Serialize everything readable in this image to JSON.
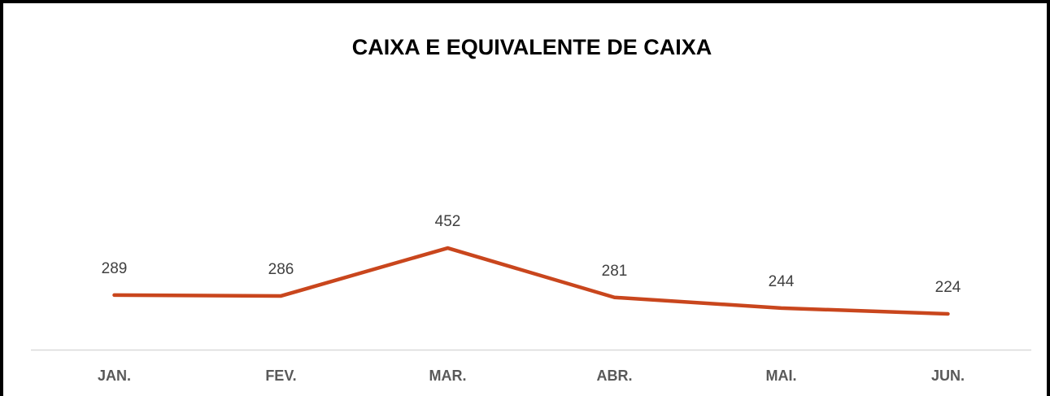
{
  "chart_data": {
    "type": "line",
    "title": "CAIXA E EQUIVALENTE DE CAIXA",
    "categories": [
      "JAN.",
      "FEV.",
      "MAR.",
      "ABR.",
      "MAI.",
      "JUN."
    ],
    "values": [
      289,
      286,
      452,
      281,
      244,
      224
    ],
    "color": "#c9461d",
    "ylim": [
      100,
      500
    ]
  }
}
